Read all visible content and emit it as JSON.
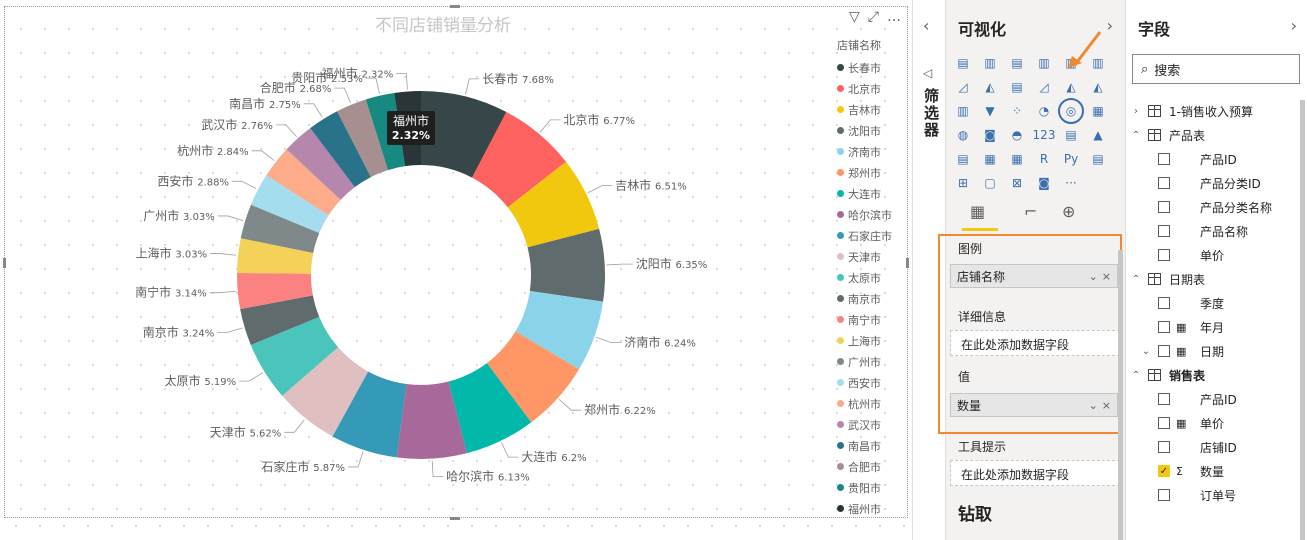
{
  "chart_data": {
    "type": "donut",
    "title": "不同店铺销量分析",
    "legend_title": "店铺名称",
    "legend_placement": "right",
    "slices": [
      {
        "label": "长春市",
        "value": 7.68,
        "color": "#374649"
      },
      {
        "label": "北京市",
        "value": 6.77,
        "color": "#fd625e"
      },
      {
        "label": "吉林市",
        "value": 6.51,
        "color": "#f2c80f"
      },
      {
        "label": "沈阳市",
        "value": 6.35,
        "color": "#5f6b6d"
      },
      {
        "label": "济南市",
        "value": 6.24,
        "color": "#8ad4eb"
      },
      {
        "label": "郑州市",
        "value": 6.22,
        "color": "#fe9666"
      },
      {
        "label": "大连市",
        "value": 6.2,
        "color": "#01b8aa"
      },
      {
        "label": "哈尔滨市",
        "value": 6.13,
        "color": "#a66999"
      },
      {
        "label": "石家庄市",
        "value": 5.87,
        "color": "#3599b8"
      },
      {
        "label": "天津市",
        "value": 5.62,
        "color": "#dfbfbf"
      },
      {
        "label": "太原市",
        "value": 5.19,
        "color": "#4ac5bb"
      },
      {
        "label": "南京市",
        "value": 3.24,
        "color": "#5f6b6d"
      },
      {
        "label": "南宁市",
        "value": 3.14,
        "color": "#fb8281"
      },
      {
        "label": "上海市",
        "value": 3.03,
        "color": "#f4d25a"
      },
      {
        "label": "广州市",
        "value": 3.03,
        "color": "#7f898a"
      },
      {
        "label": "西安市",
        "value": 2.88,
        "color": "#a4ddee"
      },
      {
        "label": "杭州市",
        "value": 2.84,
        "color": "#fdab89"
      },
      {
        "label": "武汉市",
        "value": 2.76,
        "color": "#b687ac"
      },
      {
        "label": "南昌市",
        "value": 2.75,
        "color": "#28738a"
      },
      {
        "label": "合肥市",
        "value": 2.68,
        "color": "#a78f8f"
      },
      {
        "label": "贵阳市",
        "value": 2.53,
        "color": "#168980"
      },
      {
        "label": "福州市",
        "value": 2.32,
        "color": "#293537"
      }
    ],
    "tooltip": {
      "label": "福州市",
      "value": "2.32%"
    }
  },
  "visual_header": {
    "filter_icon": "▽",
    "focus_icon": "⤢",
    "more_icon": "…"
  },
  "filters_pane": {
    "collapse": "‹",
    "label": "筛选器"
  },
  "viz_pane": {
    "title": "可视化",
    "expand": "›",
    "icons": [
      "▤",
      "▥",
      "▤",
      "▥",
      "▥",
      "▥",
      "◿",
      "◭",
      "▤",
      "◿",
      "◭",
      "◭",
      "▥",
      "▼",
      "⁘",
      "◔",
      "◎",
      "▦",
      "◍",
      "◙",
      "◓",
      "123",
      "▤",
      "▲",
      "▤",
      "▦",
      "▦",
      "R",
      "Py",
      "▤",
      "⊞",
      "▢",
      "⊠",
      "◙",
      "···"
    ],
    "tab_icons": [
      "▦",
      "⌐",
      "⊕"
    ]
  },
  "wells": {
    "legend": {
      "label": "图例",
      "field": "店铺名称",
      "expand": "⌄",
      "remove": "×"
    },
    "details": {
      "label": "详细信息",
      "placeholder": "在此处添加数据字段"
    },
    "values": {
      "label": "值",
      "field": "数量",
      "expand": "⌄",
      "remove": "×"
    },
    "tooltip": {
      "label": "工具提示",
      "placeholder": "在此处添加数据字段"
    },
    "drill": "钻取"
  },
  "fields_pane": {
    "title": "字段",
    "expand": "›",
    "search": "搜索",
    "search_icon": "⌕",
    "tree": [
      {
        "kind": "table",
        "toggle": "›",
        "label": "1-销售收入预算"
      },
      {
        "kind": "table",
        "toggle": "⌃",
        "label": "产品表"
      },
      {
        "kind": "field",
        "label": "产品ID",
        "checked": false
      },
      {
        "kind": "field",
        "label": "产品分类ID",
        "checked": false
      },
      {
        "kind": "field",
        "label": "产品分类名称",
        "checked": false
      },
      {
        "kind": "field",
        "label": "产品名称",
        "checked": false
      },
      {
        "kind": "field",
        "label": "单价",
        "checked": false
      },
      {
        "kind": "table",
        "toggle": "⌃",
        "label": "日期表"
      },
      {
        "kind": "field",
        "label": "季度",
        "checked": false
      },
      {
        "kind": "field",
        "label": "年月",
        "checked": false,
        "icon": "▦"
      },
      {
        "kind": "hier",
        "toggle": "⌄",
        "label": "日期",
        "checked": false,
        "icon": "▦"
      },
      {
        "kind": "table",
        "toggle": "⌃",
        "label": "销售表",
        "bold": true
      },
      {
        "kind": "field",
        "label": "产品ID",
        "checked": false
      },
      {
        "kind": "field",
        "label": "单价",
        "checked": false,
        "icon": "▦"
      },
      {
        "kind": "field",
        "label": "店铺ID",
        "checked": false
      },
      {
        "kind": "field",
        "label": "数量",
        "checked": true,
        "icon": "Σ"
      },
      {
        "kind": "field",
        "label": "订单号",
        "checked": false
      }
    ]
  }
}
